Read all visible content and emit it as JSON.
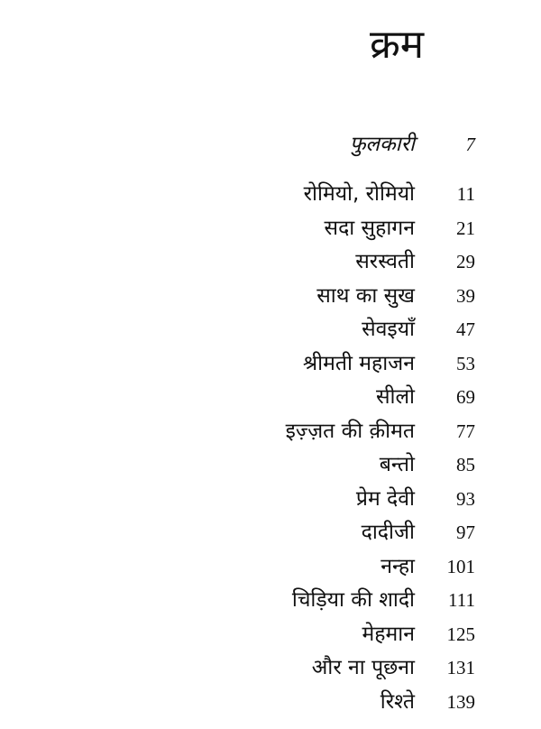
{
  "title": "क्रम",
  "entries": [
    {
      "title": "फुलकारी",
      "page": "7",
      "italic": true
    },
    {
      "title": "रोमियो, रोमियो",
      "page": "11"
    },
    {
      "title": "सदा सुहागन",
      "page": "21"
    },
    {
      "title": "सरस्वती",
      "page": "29"
    },
    {
      "title": "साथ का सुख",
      "page": "39"
    },
    {
      "title": "सेवइयाँ",
      "page": "47"
    },
    {
      "title": "श्रीमती महाजन",
      "page": "53"
    },
    {
      "title": "सीलो",
      "page": "69"
    },
    {
      "title": "इज़्ज़त की क़ीमत",
      "page": "77"
    },
    {
      "title": "बन्तो",
      "page": "85"
    },
    {
      "title": "प्रेम देवी",
      "page": "93"
    },
    {
      "title": "दादीजी",
      "page": "97"
    },
    {
      "title": "नन्हा",
      "page": "101"
    },
    {
      "title": "चिड़िया की शादी",
      "page": "111"
    },
    {
      "title": "मेहमान",
      "page": "125"
    },
    {
      "title": "और ना पूछना",
      "page": "131"
    },
    {
      "title": "रिश्ते",
      "page": "139"
    }
  ]
}
